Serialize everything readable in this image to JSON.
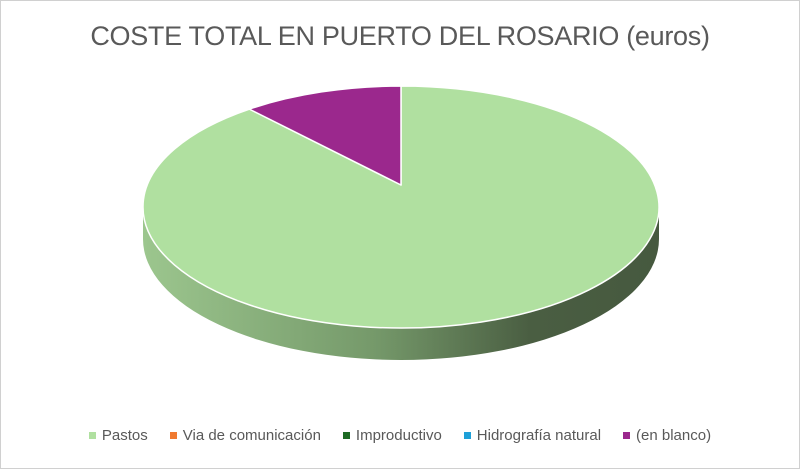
{
  "chart_data": {
    "type": "pie",
    "title": "COSTE TOTAL EN PUERTO DEL ROSARIO (euros)",
    "categories": [
      "Pastos",
      "Via de comunicación",
      "Improductivo",
      "Hidrografía natural",
      "(en blanco)"
    ],
    "values": [
      90,
      0,
      0,
      0,
      10
    ],
    "colors": [
      "#b0e0a0",
      "#f07a30",
      "#1e6b24",
      "#1ea0d8",
      "#9b288d"
    ],
    "style": "3d",
    "legend_position": "bottom"
  }
}
